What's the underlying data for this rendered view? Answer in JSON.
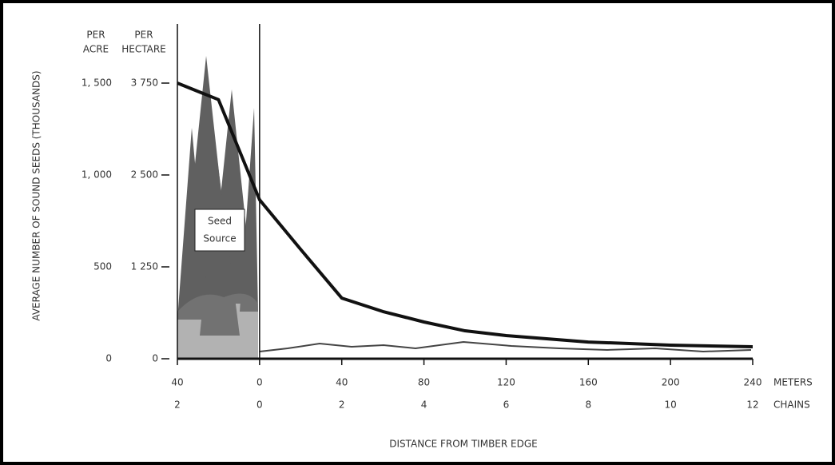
{
  "chart_data": {
    "type": "line",
    "y_label": "AVERAGE NUMBER OF SOUND SEEDS (THOUSANDS)",
    "x_label": "DISTANCE FROM TIMBER EDGE",
    "y_unit_left": [
      "PER",
      "ACRE"
    ],
    "y_unit_right": [
      "PER",
      "HECTARE"
    ],
    "x_unit": "METERS",
    "x2_unit": "CHAINS",
    "annotation": [
      "Seed",
      "Source"
    ],
    "x": [
      -40,
      -20,
      0,
      20,
      40,
      60,
      80,
      100,
      120,
      160,
      200,
      240
    ],
    "series": [
      {
        "color": "#111111",
        "values": [
          1500,
          1410,
          865,
          595,
          330,
          257,
          200,
          152,
          126,
          91,
          74,
          65
        ]
      }
    ],
    "xlim": [
      -40,
      240
    ],
    "xticks": [
      {
        "value": -40,
        "label": "40"
      },
      0,
      40,
      80,
      120,
      160,
      200,
      240
    ],
    "x2ticks": [
      "2",
      "0",
      "2",
      "4",
      "6",
      "8",
      "10",
      "12"
    ],
    "ylim": [
      0,
      1500
    ],
    "yticks": [
      0,
      500,
      {
        "value": 1000,
        "label": "1, 000"
      },
      {
        "value": 1500,
        "label": "1, 500"
      }
    ],
    "y2lim": [
      0,
      3750
    ],
    "y2ticks": [
      0,
      {
        "value": 1250,
        "label": "1 250"
      },
      {
        "value": 2500,
        "label": "2 500"
      },
      {
        "value": 3750,
        "label": "3 750"
      }
    ]
  }
}
